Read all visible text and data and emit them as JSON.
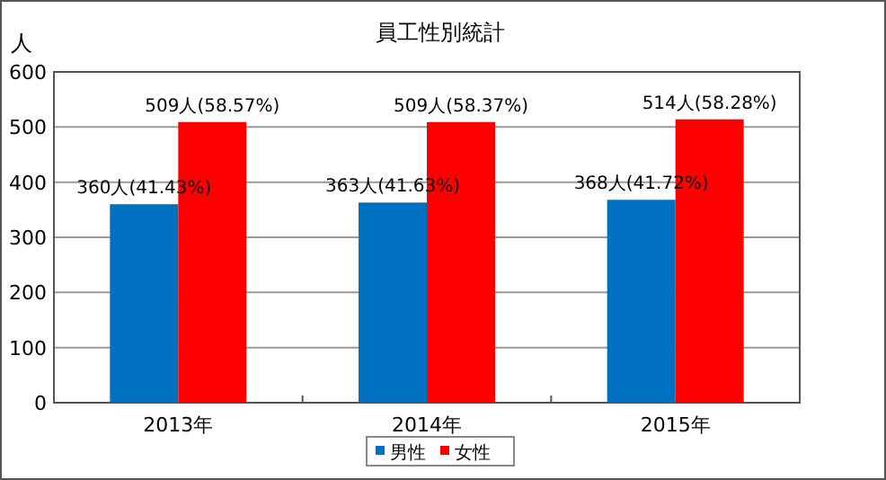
{
  "chart_data": {
    "type": "bar",
    "title": "員工性別統計",
    "ylabel": "人",
    "categories": [
      "2013年",
      "2014年",
      "2015年"
    ],
    "series": [
      {
        "name": "男性",
        "color": "#0070c0",
        "values": [
          360,
          363,
          368
        ],
        "value_labels": [
          "360人(41.43%)",
          "363人(41.63%)",
          "368人(41.72%)"
        ]
      },
      {
        "name": "女性",
        "color": "#ff0000",
        "values": [
          509,
          509,
          514
        ],
        "value_labels": [
          "509人(58.57%)",
          "509人(58.37%)",
          "514人(58.28%)"
        ]
      }
    ],
    "ylim": [
      0,
      600
    ],
    "yticks": [
      0,
      100,
      200,
      300,
      400,
      500,
      600
    ],
    "grid": "y",
    "legend": "bottom"
  }
}
